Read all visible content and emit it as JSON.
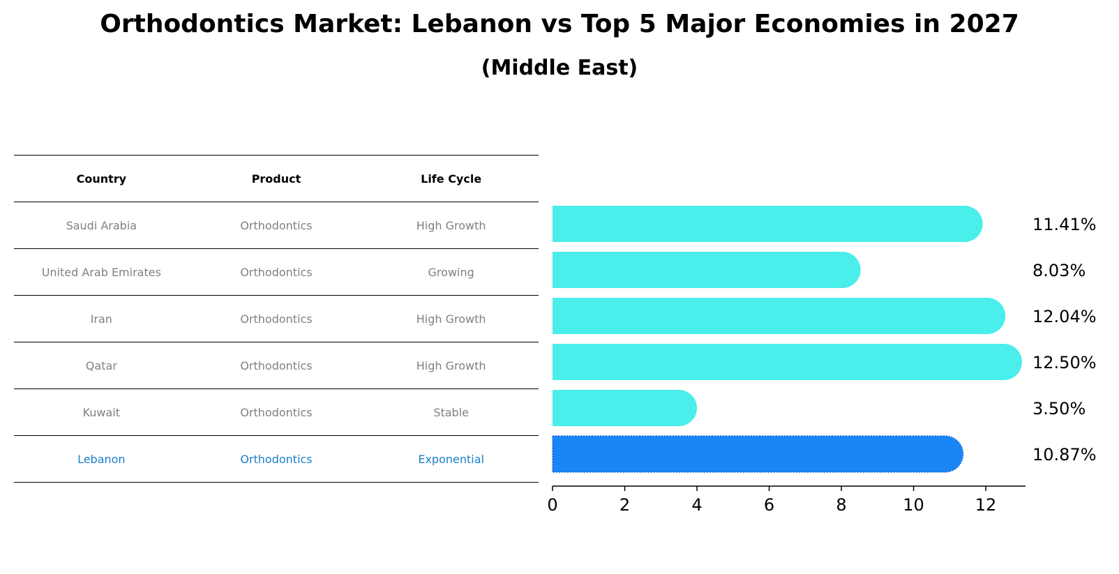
{
  "header": {
    "title": "Orthodontics Market: Lebanon vs Top 5 Major Economies in 2027",
    "subtitle": "(Middle East)"
  },
  "table": {
    "columns": [
      "Country",
      "Product",
      "Life Cycle"
    ],
    "rows": [
      {
        "country": "Saudi Arabia",
        "product": "Orthodontics",
        "life_cycle": "High Growth"
      },
      {
        "country": "United Arab Emirates",
        "product": "Orthodontics",
        "life_cycle": "Growing"
      },
      {
        "country": "Iran",
        "product": "Orthodontics",
        "life_cycle": "High Growth"
      },
      {
        "country": "Qatar",
        "product": "Orthodontics",
        "life_cycle": "High Growth"
      },
      {
        "country": "Kuwait",
        "product": "Orthodontics",
        "life_cycle": "Stable"
      },
      {
        "country": "Lebanon",
        "product": "Orthodontics",
        "life_cycle": "Exponential"
      }
    ]
  },
  "colors": {
    "bar": "#4aeeea",
    "highlight_bar": "#1a85f5",
    "highlight_text": "#1a7fc9",
    "row_text": "#808080"
  },
  "chart_data": {
    "type": "bar",
    "orientation": "horizontal",
    "categories": [
      "Saudi Arabia",
      "United Arab Emirates",
      "Iran",
      "Qatar",
      "Kuwait",
      "Lebanon"
    ],
    "values": [
      11.41,
      8.03,
      12.04,
      12.5,
      3.5,
      10.87
    ],
    "value_labels": [
      "11.41%",
      "8.03%",
      "12.04%",
      "12.50%",
      "3.50%",
      "10.87%"
    ],
    "highlight": "Lebanon",
    "xlim": [
      0,
      13.1
    ],
    "xticks": [
      0,
      2,
      4,
      6,
      8,
      10,
      12
    ],
    "xtick_labels": [
      "0",
      "2",
      "4",
      "6",
      "8",
      "10",
      "12"
    ],
    "grid": false
  }
}
